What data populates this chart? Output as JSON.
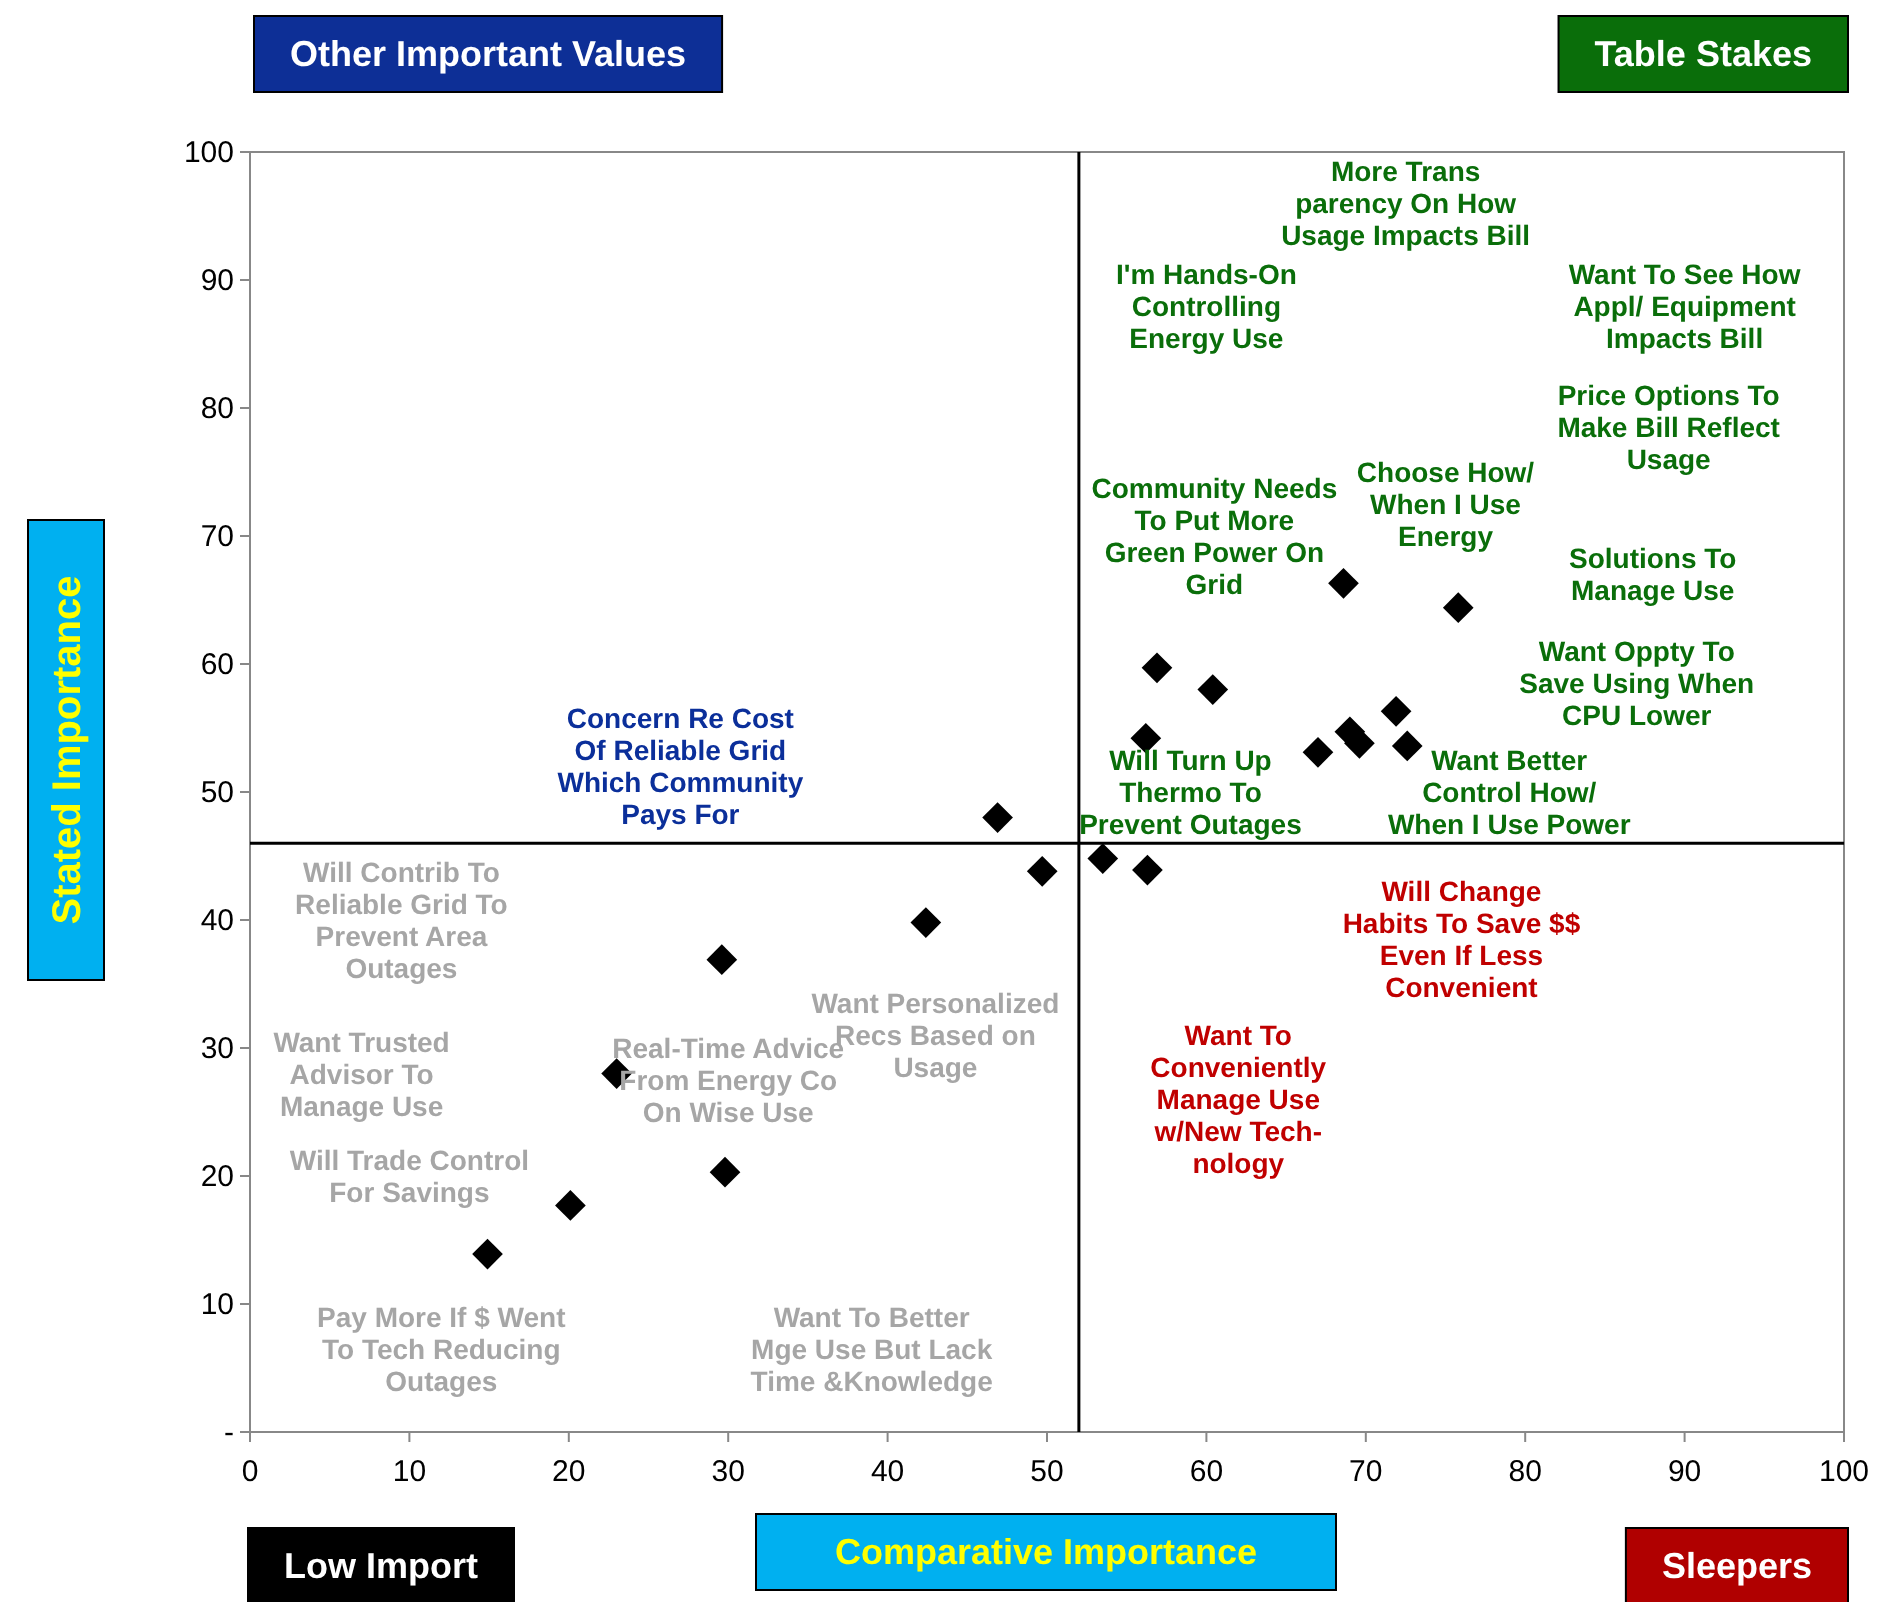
{
  "chart_data": {
    "type": "scatter",
    "xlabel": "Comparative Importance",
    "ylabel": "Stated Importance",
    "x": [
      14.9,
      20.1,
      23.0,
      29.8,
      29.6,
      42.4,
      46.9,
      49.7,
      53.5,
      56.3,
      56.2,
      56.9,
      60.4,
      67.0,
      68.6,
      69.0,
      69.6,
      71.9,
      72.6,
      75.8
    ],
    "values": [
      13.9,
      17.7,
      28.0,
      20.3,
      36.9,
      39.8,
      48.0,
      43.8,
      44.8,
      43.9,
      54.2,
      59.7,
      58.0,
      53.1,
      66.3,
      54.7,
      53.8,
      56.3,
      53.6,
      64.4
    ],
    "color": "#000000",
    "marker": "diamond",
    "xlim": [
      0,
      100
    ],
    "ylim": [
      0,
      100
    ],
    "xticks": [
      0,
      10,
      20,
      30,
      40,
      50,
      60,
      70,
      80,
      90,
      100
    ],
    "yticks": [
      {
        "value": 0,
        "label": "-"
      },
      10,
      20,
      30,
      40,
      50,
      60,
      70,
      80,
      90,
      100
    ],
    "ref_lines": [
      {
        "axis": "x",
        "value": 52,
        "color": "#000000"
      },
      {
        "axis": "y",
        "value": 46,
        "color": "#000000"
      }
    ],
    "annotations": [
      "Other Important Values",
      "Table Stakes",
      "Low Import",
      "Sleepers",
      "I'm Hands-On\nControlling\nEnergy Use",
      "More Trans\nparency On How\nUsage Impacts Bill",
      "Want To See How\nAppl/ Equipment\nImpacts Bill",
      "Price Options To\nMake Bill  Reflect\nUsage",
      "Choose How/\nWhen I Use\nEnergy",
      "Community Needs\nTo Put More\nGreen Power On\nGrid",
      "Solutions To\nManage Use",
      "Want Oppty To\nSave Using When\nCPU Lower",
      "Will Turn Up\nThermo To\nPrevent Outages",
      "Want Better\nControl How/\nWhen I Use Power",
      "Will Change\nHabits To Save $$\nEven If Less\nConvenient",
      "Want To\nConveniently\nManage Use\nw/New Tech-\nnology",
      "Want Personalized\nRecs Based on\nUsage",
      "Real-Time Advice\nFrom Energy Co\nOn Wise Use",
      "Concern Re Cost\nOf Reliable Grid\nWhich Community\nPays For",
      "Will Contrib To\nReliable Grid To\nPrevent Area\nOutages",
      "Want Trusted\nAdvisor To\nManage Use",
      "Will Trade Control\nFor Savings",
      "Pay More If $ Went\nTo Tech Reducing\nOutages",
      "Want To Better\nMge Use But Lack\nTime &Knowledge"
    ]
  }
}
